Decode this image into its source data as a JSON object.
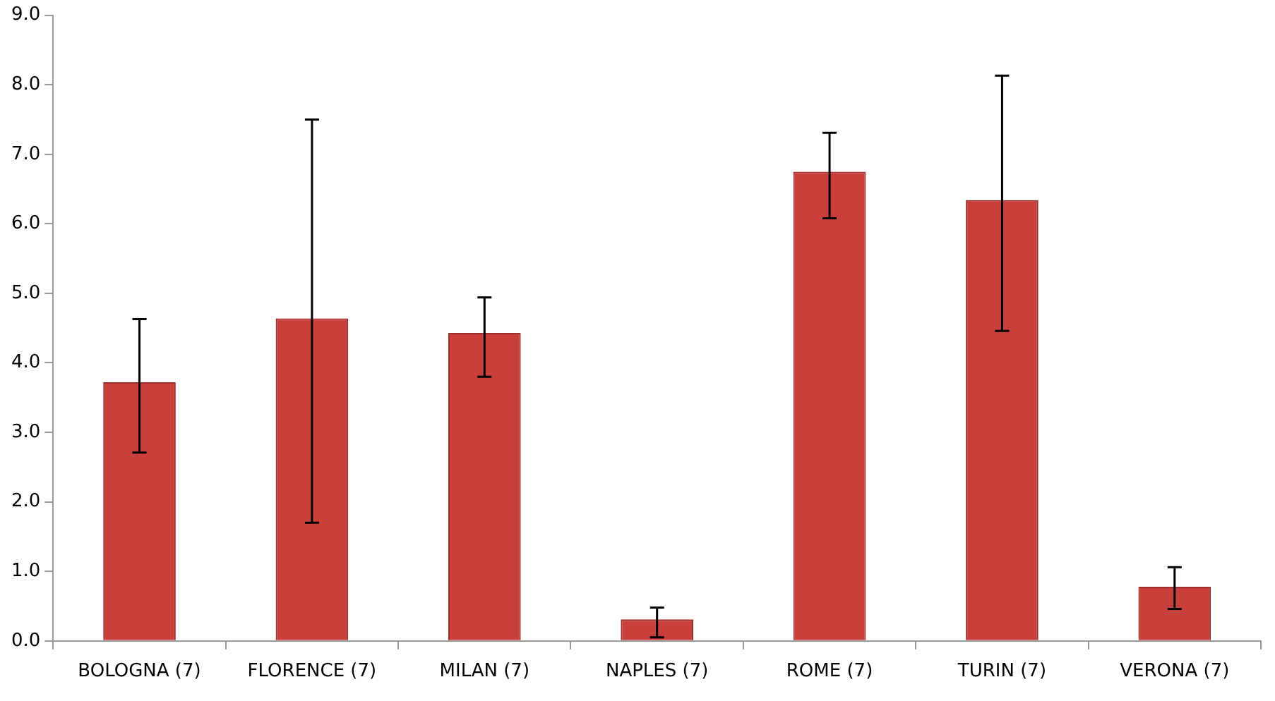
{
  "chart_data": {
    "type": "bar",
    "categories": [
      "BOLOGNA (7)",
      "FLORENCE (7)",
      "MILAN (7)",
      "NAPLES (7)",
      "ROME (7)",
      "TURIN (7)",
      "VERONA (7)"
    ],
    "values": [
      3.72,
      4.64,
      4.43,
      0.31,
      6.75,
      6.34,
      0.78
    ],
    "errors": [
      [
        2.71,
        4.63
      ],
      [
        1.7,
        7.5
      ],
      [
        3.8,
        4.94
      ],
      [
        0.05,
        0.48
      ],
      [
        6.08,
        7.31
      ],
      [
        4.46,
        8.13
      ],
      [
        0.46,
        1.06
      ]
    ],
    "color": "#c83f3b",
    "ylim": [
      0,
      9
    ],
    "yticks": [
      {
        "value": 0,
        "label": "0.0"
      },
      {
        "value": 1,
        "label": "1.0"
      },
      {
        "value": 2,
        "label": "2.0"
      },
      {
        "value": 3,
        "label": "3.0"
      },
      {
        "value": 4,
        "label": "4.0"
      },
      {
        "value": 5,
        "label": "5.0"
      },
      {
        "value": 6,
        "label": "6.0"
      },
      {
        "value": 7,
        "label": "7.0"
      },
      {
        "value": 8,
        "label": "8.0"
      },
      {
        "value": 9,
        "label": "9.0"
      }
    ],
    "grid": false,
    "legend": false
  }
}
